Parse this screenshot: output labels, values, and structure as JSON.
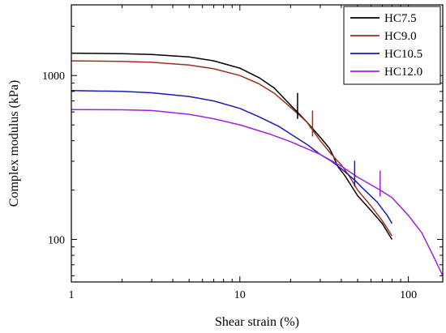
{
  "chart_data": {
    "type": "line",
    "title": "",
    "xlabel": "Shear strain (%)",
    "ylabel": "Complex modulus (kPa)",
    "x_scale": "log",
    "y_scale": "log",
    "xlim": [
      1,
      160
    ],
    "ylim": [
      55,
      2700
    ],
    "x_ticks": [
      {
        "value": 1,
        "label": "1"
      },
      {
        "value": 10,
        "label": "10"
      },
      {
        "value": 100,
        "label": "100"
      }
    ],
    "y_ticks": [
      {
        "value": 100,
        "label": "100"
      },
      {
        "value": 1000,
        "label": "1000"
      }
    ],
    "grid": false,
    "legend_position": "top-right",
    "series": [
      {
        "name": "HC7.5",
        "color": "#000000",
        "marker_x": 22,
        "points": [
          [
            1,
            1370
          ],
          [
            2,
            1360
          ],
          [
            3,
            1345
          ],
          [
            5,
            1300
          ],
          [
            7,
            1230
          ],
          [
            10,
            1110
          ],
          [
            13,
            970
          ],
          [
            16,
            840
          ],
          [
            20,
            660
          ],
          [
            25,
            520
          ],
          [
            30,
            420
          ],
          [
            34,
            360
          ],
          [
            36,
            320
          ],
          [
            38,
            280
          ],
          [
            42,
            245
          ],
          [
            50,
            185
          ],
          [
            60,
            150
          ],
          [
            70,
            125
          ],
          [
            80,
            100
          ]
        ]
      },
      {
        "name": "HC9.0",
        "color": "#a0301a",
        "marker_x": 27,
        "points": [
          [
            1,
            1230
          ],
          [
            2,
            1220
          ],
          [
            3,
            1205
          ],
          [
            5,
            1160
          ],
          [
            7,
            1100
          ],
          [
            10,
            1000
          ],
          [
            13,
            890
          ],
          [
            16,
            780
          ],
          [
            20,
            640
          ],
          [
            25,
            520
          ],
          [
            30,
            400
          ],
          [
            35,
            330
          ],
          [
            40,
            285
          ],
          [
            45,
            240
          ],
          [
            50,
            200
          ],
          [
            60,
            160
          ],
          [
            70,
            130
          ],
          [
            80,
            105
          ]
        ]
      },
      {
        "name": "HC10.5",
        "color": "#1a1ab4",
        "marker_x": 48,
        "points": [
          [
            1,
            810
          ],
          [
            2,
            800
          ],
          [
            3,
            785
          ],
          [
            5,
            745
          ],
          [
            7,
            700
          ],
          [
            10,
            630
          ],
          [
            13,
            560
          ],
          [
            17,
            490
          ],
          [
            20,
            440
          ],
          [
            25,
            380
          ],
          [
            30,
            330
          ],
          [
            35,
            300
          ],
          [
            40,
            270
          ],
          [
            48,
            230
          ],
          [
            55,
            200
          ],
          [
            65,
            170
          ],
          [
            75,
            140
          ],
          [
            80,
            125
          ]
        ]
      },
      {
        "name": "HC12.0",
        "color": "#a020e0",
        "marker_x": 68,
        "points": [
          [
            1,
            620
          ],
          [
            2,
            618
          ],
          [
            3,
            612
          ],
          [
            5,
            580
          ],
          [
            7,
            545
          ],
          [
            10,
            500
          ],
          [
            15,
            440
          ],
          [
            20,
            395
          ],
          [
            30,
            330
          ],
          [
            40,
            280
          ],
          [
            50,
            240
          ],
          [
            68,
            200
          ],
          [
            80,
            180
          ],
          [
            100,
            140
          ],
          [
            120,
            110
          ],
          [
            140,
            80
          ],
          [
            160,
            60
          ]
        ]
      }
    ]
  }
}
